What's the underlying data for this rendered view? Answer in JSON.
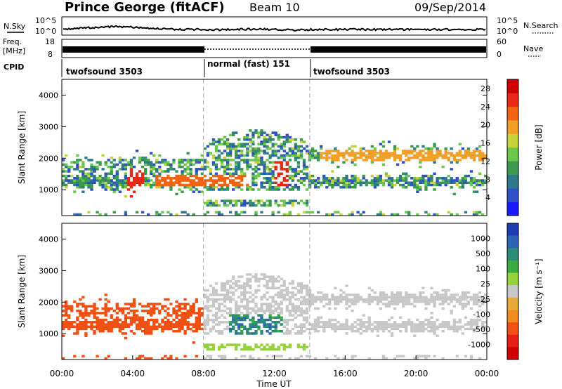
{
  "header": {
    "site": "Prince George (fitACF)",
    "beam": "Beam 10",
    "date": "09/Sep/2014"
  },
  "nsky_panel": {
    "label": "N.Sky",
    "right_label": "N.Search",
    "ticks_left": [
      "10^5",
      "10^0"
    ],
    "ticks_right": [
      "10^5",
      "10^0"
    ]
  },
  "freq_panel": {
    "label_line1": "Freq.",
    "label_line2": "[MHz]",
    "right_label": "Nave",
    "ticks_left": [
      "18",
      "8"
    ],
    "ticks_right": [
      "60",
      "0"
    ]
  },
  "cpid": {
    "label": "CPID",
    "segments": [
      {
        "name": "twofsound 3503",
        "start_h": 0,
        "end_h": 8
      },
      {
        "name": "normal (fast) 151",
        "start_h": 8,
        "end_h": 14
      },
      {
        "name": "twofsound 3503",
        "start_h": 14,
        "end_h": 24
      }
    ]
  },
  "colors": {
    "power": [
      "#1a1aff",
      "#3050c8",
      "#2e7a8c",
      "#3c9a50",
      "#6cc84c",
      "#c8d23c",
      "#f0a028",
      "#f06414",
      "#e62814",
      "#d20000"
    ],
    "velocity": [
      "#1e3cb4",
      "#2d64b4",
      "#2d8c78",
      "#3caa3c",
      "#96d23c",
      "#c8c8c8",
      "#e6aa3c",
      "#f08c1e",
      "#f05014",
      "#e61e14",
      "#d20000"
    ]
  },
  "chart_data": [
    {
      "type": "heatmap",
      "name": "power",
      "xlabel": "",
      "ylabel": "Slant Range [km]",
      "xlim": [
        0,
        24
      ],
      "ylim": [
        180,
        4500
      ],
      "yticks": [
        1000,
        2000,
        3000,
        4000
      ],
      "colorbar": {
        "label": "Power [dB]",
        "ticks": [
          "4",
          "8",
          "12",
          "16",
          "20",
          "24",
          "28"
        ],
        "range": [
          0,
          30
        ]
      },
      "features": [
        {
          "x_start_h": 0.0,
          "x_end_h": 8.0,
          "range_km": [
            900,
            1900
          ],
          "typical_value_db": 8
        },
        {
          "x_start_h": 3.6,
          "x_end_h": 4.6,
          "range_km": [
            700,
            1700
          ],
          "typical_value_db": 28
        },
        {
          "x_start_h": 8.0,
          "x_end_h": 14.0,
          "range_km": [
            1000,
            3000
          ],
          "typical_value_db": 12
        },
        {
          "x_start_h": 12.0,
          "x_end_h": 12.8,
          "range_km": [
            1100,
            1900
          ],
          "typical_value_db": 28
        },
        {
          "x_start_h": 14.5,
          "x_end_h": 24.0,
          "range_km": [
            1900,
            2300
          ],
          "typical_value_db": 18
        },
        {
          "x_start_h": 14.0,
          "x_end_h": 24.0,
          "range_km": [
            1000,
            1500
          ],
          "typical_value_db": 14
        }
      ]
    },
    {
      "type": "heatmap",
      "name": "velocity",
      "xlabel": "Time UT",
      "ylabel": "Slant Range [km]",
      "xlim": [
        0,
        24
      ],
      "ylim": [
        180,
        4500
      ],
      "xticks": [
        "00:00",
        "04:00",
        "08:00",
        "12:00",
        "16:00",
        "20:00",
        "00:00"
      ],
      "yticks": [
        1000,
        2000,
        3000,
        4000
      ],
      "colorbar": {
        "label": "Velocity [m s⁻¹]",
        "ticks": [
          "1000",
          "500",
          "100",
          "25",
          "-25",
          "-100",
          "-500",
          "-1000"
        ]
      },
      "features": [
        {
          "x_start_h": 0.0,
          "x_end_h": 8.0,
          "range_km": [
            900,
            2000
          ],
          "typical_value_ms": -300
        },
        {
          "x_start_h": 8.0,
          "x_end_h": 14.0,
          "range_km": [
            1000,
            3000
          ],
          "typical_value_ms": 0
        },
        {
          "x_start_h": 9.5,
          "x_end_h": 12.5,
          "range_km": [
            1000,
            1600
          ],
          "typical_value_ms": 300
        },
        {
          "x_start_h": 14.0,
          "x_end_h": 24.0,
          "range_km": [
            1000,
            2300
          ],
          "typical_value_ms": 0
        }
      ]
    }
  ]
}
